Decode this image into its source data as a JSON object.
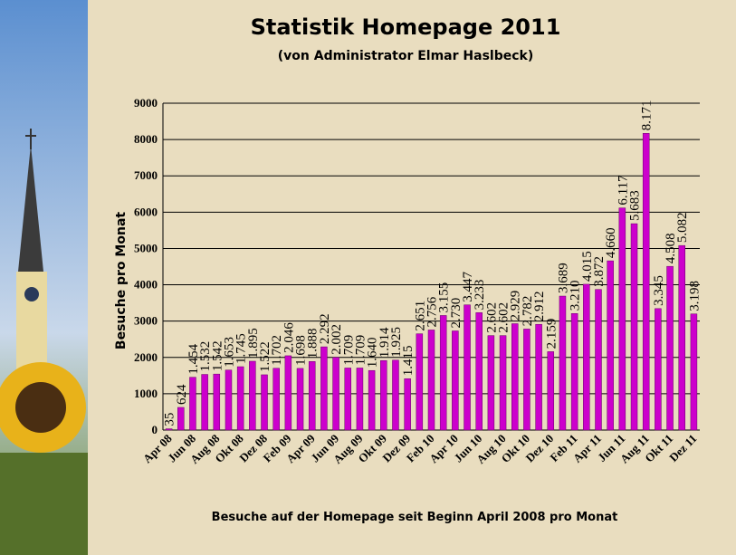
{
  "chart_data": {
    "type": "bar",
    "title": "Statistik Homepage 2011",
    "subtitle": "(von Administrator Elmar Haslbeck)",
    "y_label": "Besuche pro Monat",
    "x_label": "Besuche auf der Homepage seit Beginn April 2008 pro Monat",
    "categories": [
      "Apr 08",
      null,
      "Jun 08",
      null,
      "Aug 08",
      null,
      "Okt 08",
      null,
      "Dez 08",
      null,
      "Feb 09",
      null,
      "Apr 09",
      null,
      "Jun 09",
      null,
      "Aug 09",
      null,
      "Okt 09",
      null,
      "Dez 09",
      null,
      "Feb 10",
      null,
      "Apr 10",
      null,
      "Jun 10",
      null,
      "Aug 10",
      null,
      "Okt 10",
      null,
      "Dez 10",
      null,
      "Feb 11",
      null,
      "Apr 11",
      null,
      "Jun 11",
      null,
      "Aug 11",
      null,
      "Okt 11",
      null,
      "Dez 11"
    ],
    "values": [
      35,
      624,
      1454,
      1532,
      1542,
      1653,
      1745,
      1895,
      1522,
      1702,
      2046,
      1698,
      1888,
      2292,
      2002,
      1709,
      1709,
      1640,
      1914,
      1925,
      1415,
      2651,
      2756,
      3155,
      2730,
      3447,
      3233,
      2602,
      2602,
      2929,
      2782,
      2912,
      2159,
      3689,
      3210,
      4015,
      3872,
      4660,
      6117,
      5683,
      8171,
      3345,
      4508,
      5082,
      3198
    ],
    "value_labels": [
      "35",
      "624",
      "1.454",
      "1.532",
      "1.542",
      "1.653",
      "1.745",
      "1.895",
      "1.522",
      "1.702",
      "2.046",
      "1.698",
      "1.888",
      "2.292",
      "2.002",
      "1.709",
      "1.709",
      "1.640",
      "1.914",
      "1.925",
      "1.415",
      "2.651",
      "2.756",
      "3.155",
      "2.730",
      "3.447",
      "3.233",
      "2.602",
      "2.602",
      "2.929",
      "2.782",
      "2.912",
      "2.159",
      "3.689",
      "3.210",
      "4.015",
      "3.872",
      "4.660",
      "6.117",
      "5.683",
      "8.171",
      "3.345",
      "4.508",
      "5.082",
      "3.198"
    ],
    "color": "#cc00cc",
    "ylim": [
      0,
      9000
    ],
    "yticks": [
      0,
      1000,
      2000,
      3000,
      4000,
      5000,
      6000,
      7000,
      8000,
      9000
    ],
    "grid": true
  }
}
